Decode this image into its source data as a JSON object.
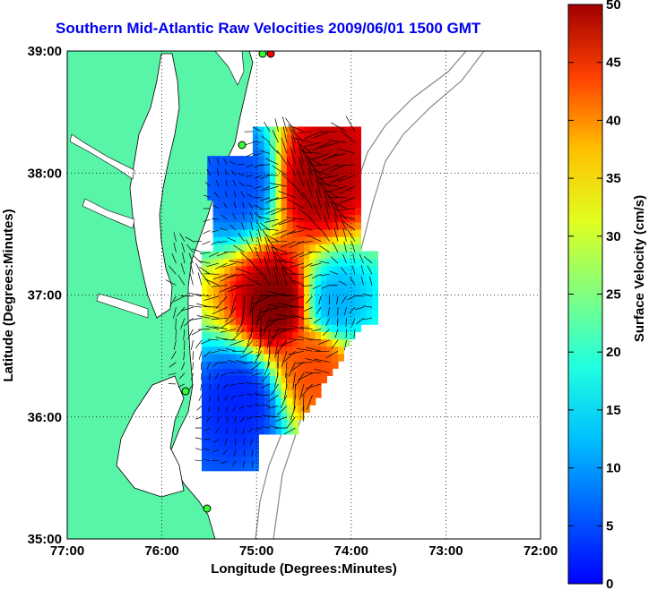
{
  "title": "Southern Mid-Atlantic Raw Velocities 2009/06/01 1500 GMT",
  "map": {
    "xlabel": "Longitude (Degrees:Minutes)",
    "ylabel": "Latitude (Degrees:Minutes)",
    "x_ticks": [
      "77:00",
      "76:00",
      "75:00",
      "74:00",
      "73:00",
      "72:00"
    ],
    "y_ticks": [
      "39:00",
      "38:00",
      "37:00",
      "36:00",
      "35:00"
    ],
    "land_color": "#58f5a8",
    "water_color": "#ffffff",
    "grid": true,
    "lon_range": [
      -77,
      -72
    ],
    "lat_range": [
      35,
      39
    ]
  },
  "colorbar": {
    "label": "Surface Velocity (cm/s)",
    "ticks": [
      "0",
      "5",
      "10",
      "15",
      "20",
      "25",
      "30",
      "35",
      "40",
      "45",
      "50"
    ],
    "range": [
      0,
      50
    ],
    "colormap": "jet"
  },
  "chart_data": {
    "type": "heatmap",
    "title": "Southern Mid-Atlantic Raw Velocities 2009/06/01 1500 GMT",
    "xlabel": "Longitude (Degrees:Minutes)",
    "ylabel": "Latitude (Degrees:Minutes)",
    "xlim": [
      -77,
      -72
    ],
    "ylim": [
      35,
      39
    ],
    "colorbar_label": "Surface Velocity (cm/s)",
    "colorbar_range": [
      0,
      50
    ],
    "regions_speed_cm_s": [
      {
        "region": "north-patch-inner",
        "lon": -75.2,
        "lat": 37.9,
        "speed": 10
      },
      {
        "region": "north-patch-outer",
        "lon": -74.4,
        "lat": 37.9,
        "speed": 48
      },
      {
        "region": "central-band",
        "lon": -74.8,
        "lat": 36.9,
        "speed": 50
      },
      {
        "region": "central-east",
        "lon": -74.2,
        "lat": 36.9,
        "speed": 15
      },
      {
        "region": "south-patch-inner",
        "lon": -75.2,
        "lat": 36.1,
        "speed": 8
      },
      {
        "region": "south-patch-outer",
        "lon": -74.4,
        "lat": 36.4,
        "speed": 40
      }
    ]
  }
}
